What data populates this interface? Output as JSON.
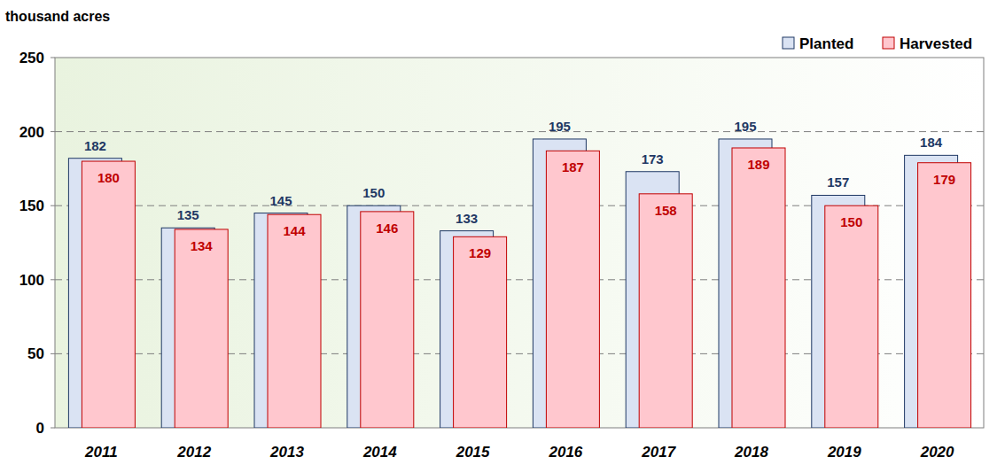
{
  "chart_data": {
    "type": "bar",
    "ylabel": "thousand acres",
    "categories": [
      "2011",
      "2012",
      "2013",
      "2014",
      "2015",
      "2016",
      "2017",
      "2018",
      "2019",
      "2020"
    ],
    "series": [
      {
        "name": "Planted",
        "color": "#dae3f3",
        "values": [
          182,
          135,
          145,
          150,
          133,
          195,
          173,
          195,
          157,
          184
        ]
      },
      {
        "name": "Harvested",
        "color": "#ffc7ce",
        "values": [
          180,
          134,
          144,
          146,
          129,
          187,
          158,
          189,
          150,
          179
        ]
      }
    ],
    "ylim": [
      0,
      250
    ],
    "yticks": [
      0,
      50,
      100,
      150,
      200,
      250
    ],
    "grid": true,
    "legend": "upper right",
    "data_labels": true
  }
}
